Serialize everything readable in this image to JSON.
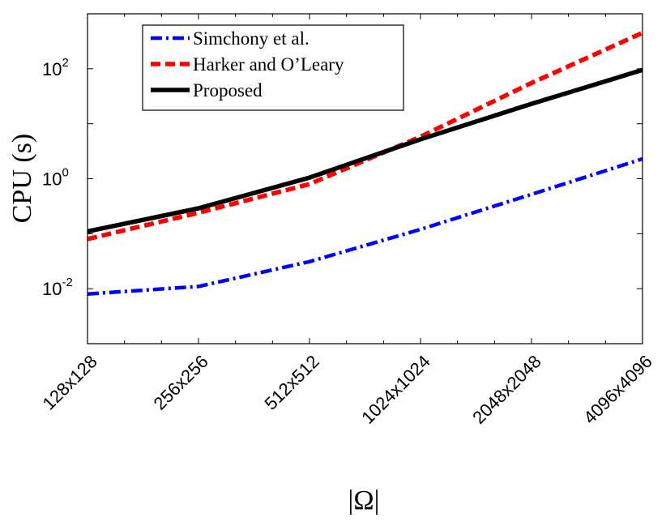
{
  "chart_data": {
    "type": "line",
    "title": "",
    "xlabel": "|Ω|",
    "ylabel": "CPU (s)",
    "yscale": "log",
    "ylim_exponents": [
      -3,
      3
    ],
    "categories": [
      "128x128",
      "256x256",
      "512x512",
      "1024x1024",
      "2048x2048",
      "4096x4096"
    ],
    "y_ticks": [
      {
        "value": 0.01,
        "base": "10",
        "exponent": "-2"
      },
      {
        "value": 1,
        "base": "10",
        "exponent": "0"
      },
      {
        "value": 100,
        "base": "10",
        "exponent": "2"
      }
    ],
    "grid": false,
    "legend_position": "top-left",
    "series": [
      {
        "name": "Simchony et al.",
        "color": "#0000ff",
        "style": "dash-dot",
        "values": [
          0.008,
          0.011,
          0.031,
          0.12,
          0.52,
          2.3
        ]
      },
      {
        "name": "Harker and O’Leary",
        "color": "#ff0000",
        "style": "dashed",
        "values": [
          0.08,
          0.24,
          0.8,
          5.8,
          55,
          450
        ]
      },
      {
        "name": "Proposed",
        "color": "#000000",
        "style": "solid",
        "values": [
          0.11,
          0.29,
          1.05,
          5.2,
          23,
          95
        ]
      }
    ]
  }
}
